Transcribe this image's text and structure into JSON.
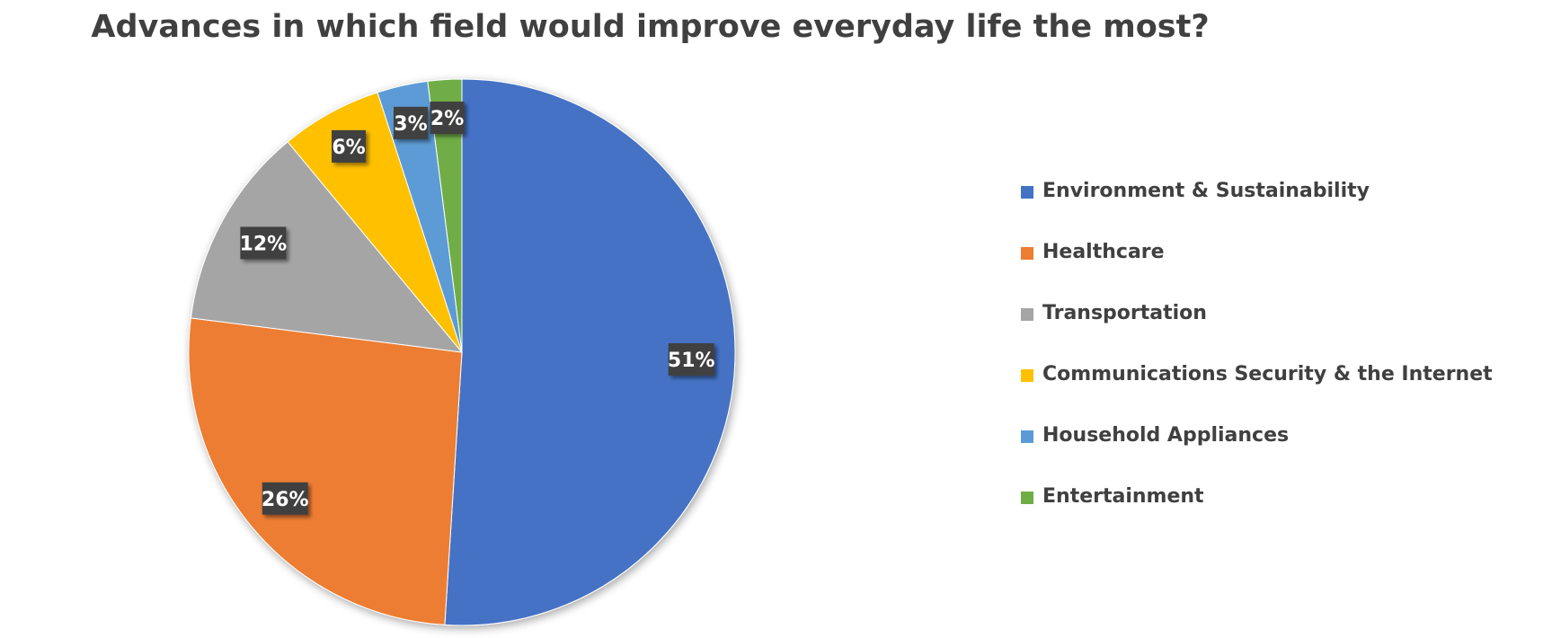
{
  "chart_data": {
    "type": "pie",
    "title": "Advances in which field would improve everyday life the most?",
    "legend_position": "right",
    "start_angle_deg": 0,
    "direction": "clockwise",
    "slices": [
      {
        "name": "Environment & Sustainability",
        "value": 51,
        "label": "51%",
        "color": "#4472C4"
      },
      {
        "name": "Healthcare",
        "value": 26,
        "label": "26%",
        "color": "#ED7D31"
      },
      {
        "name": "Transportation",
        "value": 12,
        "label": "12%",
        "color": "#A5A5A5"
      },
      {
        "name": "Communications Security & the Internet",
        "value": 6,
        "label": "6%",
        "color": "#FFC000"
      },
      {
        "name": "Household Appliances",
        "value": 3,
        "label": "3%",
        "color": "#5B9BD5"
      },
      {
        "name": "Entertainment",
        "value": 2,
        "label": "2%",
        "color": "#70AD47"
      }
    ]
  }
}
